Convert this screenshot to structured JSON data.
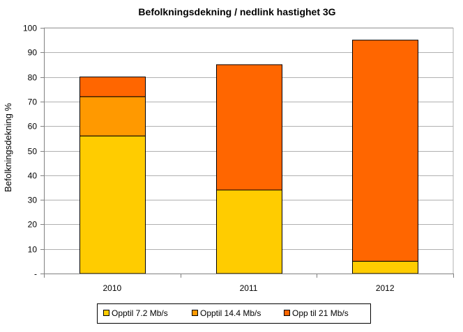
{
  "chart_data": {
    "type": "bar",
    "stacked": true,
    "title": "Befolkningsdekning / nedlink hastighet 3G",
    "xlabel": "",
    "ylabel": "Befolkningsdekning %",
    "ylim": [
      0,
      100
    ],
    "yticks": [
      "-",
      "10",
      "20",
      "30",
      "40",
      "50",
      "60",
      "70",
      "80",
      "90",
      "100"
    ],
    "categories": [
      "2010",
      "2011",
      "2012"
    ],
    "series": [
      {
        "name": "Opptil 7.2 Mb/s",
        "values": [
          56,
          34,
          5
        ],
        "color": "#FFCC00"
      },
      {
        "name": "Opptil 14.4 Mb/s",
        "values": [
          16,
          0,
          0
        ],
        "color": "#FF9900"
      },
      {
        "name": "Opp til 21 Mb/s",
        "values": [
          8,
          51,
          90
        ],
        "color": "#FF6600"
      }
    ],
    "grid": true,
    "legend": "bottom"
  }
}
